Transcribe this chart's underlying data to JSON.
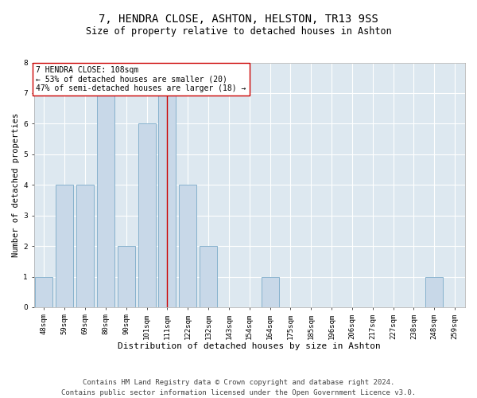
{
  "title1": "7, HENDRA CLOSE, ASHTON, HELSTON, TR13 9SS",
  "title2": "Size of property relative to detached houses in Ashton",
  "xlabel": "Distribution of detached houses by size in Ashton",
  "ylabel": "Number of detached properties",
  "categories": [
    "48sqm",
    "59sqm",
    "69sqm",
    "80sqm",
    "90sqm",
    "101sqm",
    "111sqm",
    "122sqm",
    "132sqm",
    "143sqm",
    "154sqm",
    "164sqm",
    "175sqm",
    "185sqm",
    "196sqm",
    "206sqm",
    "217sqm",
    "227sqm",
    "238sqm",
    "248sqm",
    "259sqm"
  ],
  "values": [
    1,
    4,
    4,
    7,
    2,
    6,
    7,
    4,
    2,
    0,
    0,
    1,
    0,
    0,
    0,
    0,
    0,
    0,
    0,
    1,
    0
  ],
  "bar_color": "#c8d8e8",
  "bar_edge_color": "#7aaac8",
  "ref_line_index": 6,
  "ref_line_color": "#cc0000",
  "annotation_line1": "7 HENDRA CLOSE: 108sqm",
  "annotation_line2": "← 53% of detached houses are smaller (20)",
  "annotation_line3": "47% of semi-detached houses are larger (18) →",
  "ylim": [
    0,
    8
  ],
  "yticks": [
    0,
    1,
    2,
    3,
    4,
    5,
    6,
    7,
    8
  ],
  "footer1": "Contains HM Land Registry data © Crown copyright and database right 2024.",
  "footer2": "Contains public sector information licensed under the Open Government Licence v3.0.",
  "fig_bg_color": "#ffffff",
  "plot_bg_color": "#dde8f0",
  "grid_color": "#ffffff",
  "title1_fontsize": 10,
  "title2_fontsize": 8.5,
  "xlabel_fontsize": 8,
  "ylabel_fontsize": 7.5,
  "annotation_fontsize": 7,
  "footer_fontsize": 6.5,
  "tick_fontsize": 6.5
}
